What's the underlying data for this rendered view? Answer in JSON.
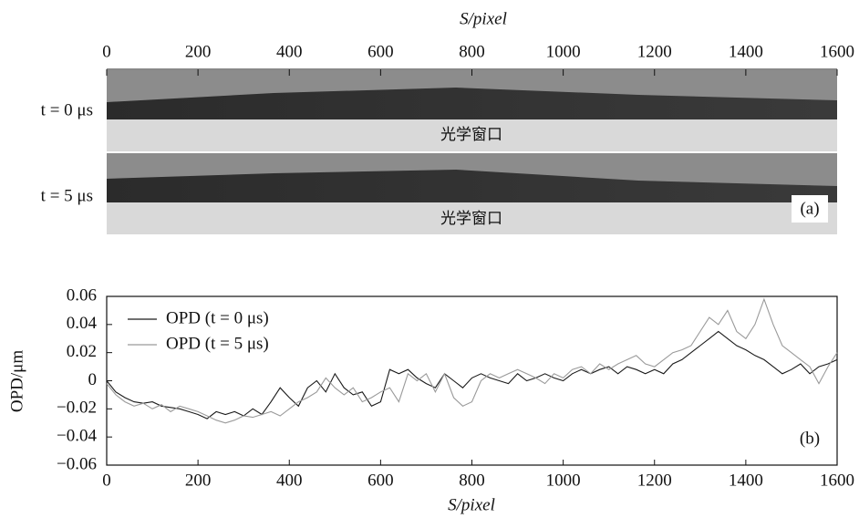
{
  "chart_data": [
    {
      "type": "image",
      "xlabel": "S/pixel",
      "xlim": [
        0,
        1600
      ],
      "xticks": [
        0,
        200,
        400,
        600,
        800,
        1000,
        1200,
        1400,
        1600
      ],
      "rows": [
        {
          "label": "t = 0 μs",
          "window_label": "光学窗口"
        },
        {
          "label": "t = 5 μs",
          "window_label": "光学窗口"
        }
      ],
      "panel_label": "(a)"
    },
    {
      "type": "line",
      "xlabel": "S/pixel",
      "ylabel": "OPD/μm",
      "panel_label": "(b)",
      "xlim": [
        0,
        1600
      ],
      "xticks": [
        0,
        200,
        400,
        600,
        800,
        1000,
        1200,
        1400,
        1600
      ],
      "ylim": [
        -0.06,
        0.06
      ],
      "yticks": [
        {
          "value": -0.06,
          "label": "−0.06"
        },
        {
          "value": -0.04,
          "label": "−0.04"
        },
        {
          "value": -0.02,
          "label": "−0.02"
        },
        0,
        0.02,
        0.04,
        0.06
      ],
      "legend": "upper left",
      "x": [
        0,
        20,
        40,
        60,
        80,
        100,
        120,
        140,
        160,
        180,
        200,
        220,
        240,
        260,
        280,
        300,
        320,
        340,
        360,
        380,
        400,
        420,
        440,
        460,
        480,
        500,
        520,
        540,
        560,
        580,
        600,
        620,
        640,
        660,
        680,
        700,
        720,
        740,
        760,
        780,
        800,
        820,
        840,
        860,
        880,
        900,
        920,
        940,
        960,
        980,
        1000,
        1020,
        1040,
        1060,
        1080,
        1100,
        1120,
        1140,
        1160,
        1180,
        1200,
        1220,
        1240,
        1260,
        1280,
        1300,
        1320,
        1340,
        1360,
        1380,
        1400,
        1420,
        1440,
        1460,
        1480,
        1500,
        1520,
        1540,
        1560,
        1580,
        1600
      ],
      "series": [
        {
          "name": "OPD (t = 0 μs)",
          "color": "#1a1a1a",
          "values": [
            0,
            -0.008,
            -0.012,
            -0.015,
            -0.016,
            -0.015,
            -0.018,
            -0.019,
            -0.02,
            -0.022,
            -0.024,
            -0.027,
            -0.022,
            -0.024,
            -0.022,
            -0.025,
            -0.02,
            -0.024,
            -0.015,
            -0.005,
            -0.012,
            -0.018,
            -0.005,
            0,
            -0.008,
            0.005,
            -0.005,
            -0.01,
            -0.008,
            -0.018,
            -0.015,
            0.008,
            0.005,
            0.008,
            0.002,
            -0.002,
            -0.005,
            0.005,
            0,
            -0.005,
            0.002,
            0.005,
            0.002,
            0,
            -0.002,
            0.005,
            0,
            0.002,
            0.005,
            0.002,
            0,
            0.005,
            0.008,
            0.005,
            0.008,
            0.01,
            0.005,
            0.01,
            0.008,
            0.005,
            0.008,
            0.005,
            0.012,
            0.015,
            0.02,
            0.025,
            0.03,
            0.035,
            0.03,
            0.025,
            0.022,
            0.018,
            0.015,
            0.01,
            0.005,
            0.008,
            0.012,
            0.005,
            0.01,
            0.012,
            0.015
          ]
        },
        {
          "name": "OPD (t = 5 μs)",
          "color": "#9a9a9a",
          "values": [
            -0.002,
            -0.01,
            -0.015,
            -0.018,
            -0.016,
            -0.02,
            -0.017,
            -0.022,
            -0.018,
            -0.02,
            -0.022,
            -0.025,
            -0.028,
            -0.03,
            -0.028,
            -0.025,
            -0.026,
            -0.024,
            -0.022,
            -0.025,
            -0.02,
            -0.015,
            -0.012,
            -0.008,
            0.002,
            -0.005,
            -0.01,
            -0.005,
            -0.015,
            -0.012,
            -0.008,
            -0.005,
            -0.015,
            0.005,
            0,
            0.005,
            -0.008,
            0.005,
            -0.012,
            -0.018,
            -0.015,
            0,
            0.005,
            0.002,
            0.005,
            0.008,
            0.005,
            0.002,
            -0.002,
            0.005,
            0.002,
            0.008,
            0.01,
            0.005,
            0.012,
            0.008,
            0.012,
            0.015,
            0.018,
            0.012,
            0.01,
            0.015,
            0.02,
            0.022,
            0.025,
            0.035,
            0.045,
            0.04,
            0.05,
            0.035,
            0.03,
            0.04,
            0.058,
            0.04,
            0.025,
            0.02,
            0.015,
            0.01,
            -0.002,
            0.01,
            0.02
          ]
        }
      ]
    }
  ]
}
